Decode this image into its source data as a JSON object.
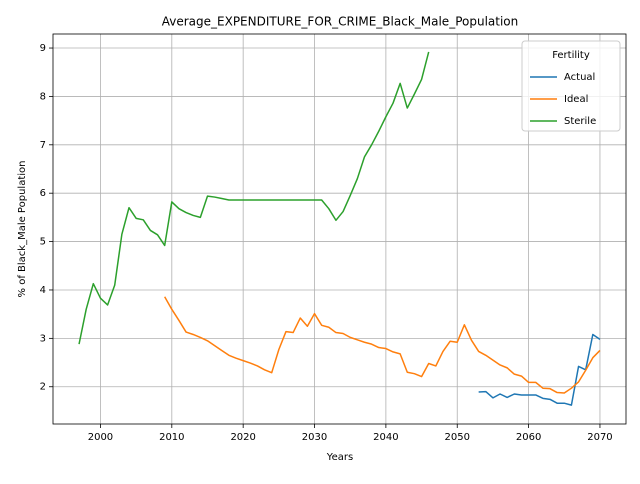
{
  "chart_data": {
    "type": "line",
    "title": "Average_EXPENDITURE_FOR_CRIME_Black_Male_Population",
    "x_label": "Years",
    "y_label": "% of Black_Male Population",
    "x": [
      1997,
      1998,
      1999,
      2000,
      2001,
      2002,
      2003,
      2004,
      2005,
      2006,
      2007,
      2008,
      2009,
      2010,
      2011,
      2012,
      2013,
      2014,
      2015,
      2016,
      2017,
      2018,
      2019,
      2020,
      2021,
      2022,
      2023,
      2024,
      2025,
      2026,
      2027,
      2028,
      2029,
      2030,
      2031,
      2032,
      2033,
      2034,
      2035,
      2036,
      2037,
      2038,
      2039,
      2040,
      2041,
      2042,
      2043,
      2044,
      2045,
      2046,
      2047,
      2048,
      2049,
      2050,
      2051,
      2052,
      2053,
      2054,
      2055,
      2056,
      2057,
      2058,
      2059,
      2060,
      2061,
      2062,
      2063,
      2064,
      2065,
      2066,
      2067,
      2068,
      2069,
      2070
    ],
    "series": [
      {
        "name": "Actual",
        "color": "#1f77b4",
        "values": [
          null,
          null,
          null,
          null,
          null,
          null,
          null,
          null,
          null,
          null,
          null,
          null,
          null,
          null,
          null,
          null,
          null,
          null,
          null,
          null,
          null,
          null,
          null,
          null,
          null,
          null,
          null,
          null,
          null,
          null,
          null,
          null,
          null,
          null,
          null,
          null,
          null,
          null,
          null,
          null,
          null,
          null,
          null,
          null,
          null,
          null,
          null,
          null,
          null,
          null,
          null,
          null,
          null,
          null,
          null,
          null,
          1.89,
          1.9,
          1.77,
          1.85,
          1.78,
          1.85,
          1.83,
          1.83,
          1.83,
          1.76,
          1.74,
          1.66,
          1.66,
          1.62,
          2.42,
          2.35,
          3.08,
          2.98
        ]
      },
      {
        "name": "Ideal",
        "color": "#ff7f0e",
        "values": [
          null,
          null,
          null,
          null,
          null,
          null,
          null,
          null,
          null,
          null,
          null,
          null,
          3.86,
          3.6,
          3.37,
          3.13,
          3.08,
          3.02,
          2.95,
          2.85,
          2.75,
          2.65,
          2.59,
          2.54,
          2.49,
          2.43,
          2.35,
          2.29,
          2.77,
          3.14,
          3.12,
          3.42,
          3.25,
          3.51,
          3.27,
          3.23,
          3.12,
          3.1,
          3.02,
          2.97,
          2.92,
          2.88,
          2.81,
          2.79,
          2.72,
          2.68,
          2.3,
          2.27,
          2.21,
          2.48,
          2.43,
          2.73,
          2.94,
          2.92,
          3.28,
          2.96,
          2.73,
          2.65,
          2.55,
          2.45,
          2.39,
          2.26,
          2.22,
          2.09,
          2.09,
          1.97,
          1.96,
          1.88,
          1.87,
          1.97,
          2.1,
          2.34,
          2.6,
          2.75
        ]
      },
      {
        "name": "Sterile",
        "color": "#2ca02c",
        "values": [
          2.88,
          3.6,
          4.13,
          3.83,
          3.69,
          4.1,
          5.15,
          5.7,
          5.48,
          5.45,
          5.23,
          5.14,
          4.92,
          5.82,
          5.68,
          5.6,
          5.54,
          5.5,
          5.94,
          5.92,
          5.89,
          5.86,
          5.86,
          5.86,
          5.86,
          5.86,
          5.86,
          5.86,
          5.86,
          5.86,
          5.86,
          5.86,
          5.86,
          5.86,
          5.86,
          5.68,
          5.44,
          5.62,
          5.95,
          6.3,
          6.75,
          7.0,
          7.28,
          7.58,
          7.86,
          8.27,
          7.76,
          8.05,
          8.35,
          8.92,
          null,
          null,
          null,
          null,
          null,
          null,
          null,
          null,
          null,
          null,
          null,
          null,
          null,
          null,
          null,
          null,
          null,
          null,
          null,
          null,
          null,
          null,
          null,
          null
        ]
      }
    ],
    "xlim": [
      1993.35,
      2073.65
    ],
    "xticks": [
      2000,
      2010,
      2020,
      2030,
      2040,
      2050,
      2060,
      2070
    ],
    "ylim": [
      1.23,
      9.29
    ],
    "yticks": [
      2,
      3,
      4,
      5,
      6,
      7,
      8,
      9
    ],
    "grid": true,
    "legend_title": "Fertility",
    "legend_position": "upper right"
  }
}
